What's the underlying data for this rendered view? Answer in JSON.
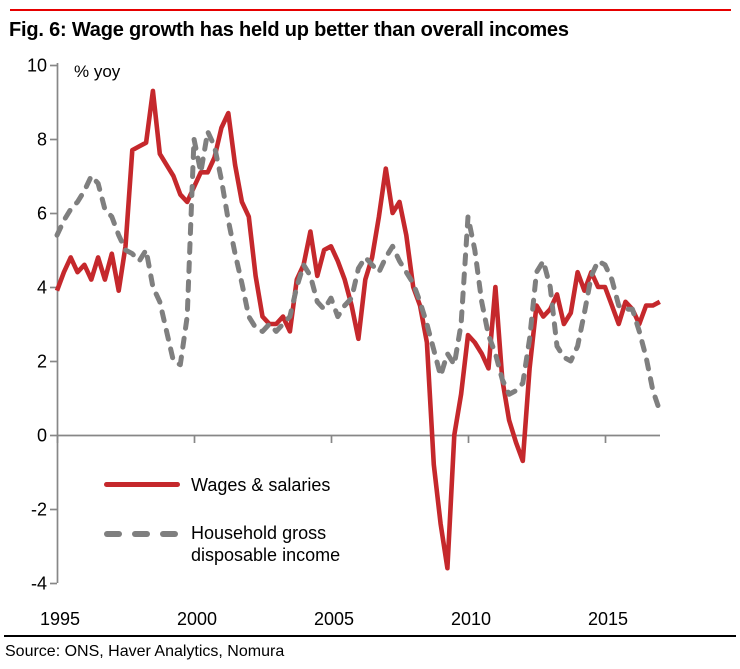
{
  "figure": {
    "title": "Fig. 6: Wage growth has held up better than overall incomes",
    "unit_label": "% yoy",
    "source": "Source: ONS, Haver Analytics, Nomura"
  },
  "colors": {
    "top_rule_red": "#e60000",
    "series_red": "#c5282c",
    "series_gray": "#7f7f7f",
    "axis_gray": "#878787",
    "bottom_rule_black": "#000000",
    "text_black": "#000000"
  },
  "chart_data": {
    "type": "line",
    "title": "Fig. 6: Wage growth has held up better than overall incomes",
    "ylabel": "% yoy",
    "xlabel": "",
    "x_start": 1995.0,
    "x_step": 0.25,
    "xlim": [
      1995,
      2017.25
    ],
    "ylim": [
      -4,
      10
    ],
    "y_ticks": [
      10,
      8,
      6,
      4,
      2,
      0,
      -2,
      -4
    ],
    "x_ticks": [
      1995,
      2000,
      2005,
      2010,
      2015
    ],
    "grid": "zero-line-only",
    "legend_position": "inside-bottom-left",
    "series": [
      {
        "name": "Wages & salaries",
        "style": "solid",
        "color": "#c5282c",
        "values": [
          3.9,
          4.4,
          4.8,
          4.4,
          4.6,
          4.2,
          4.8,
          4.2,
          4.9,
          3.9,
          5.1,
          7.7,
          7.8,
          7.9,
          9.3,
          7.6,
          7.3,
          7.0,
          6.5,
          6.3,
          6.7,
          7.1,
          7.1,
          7.5,
          8.3,
          8.7,
          7.3,
          6.3,
          5.9,
          4.3,
          3.2,
          3.0,
          3.0,
          3.2,
          2.8,
          4.2,
          4.6,
          5.5,
          4.3,
          5.0,
          5.1,
          4.7,
          4.2,
          3.5,
          2.6,
          4.2,
          4.8,
          5.9,
          7.2,
          6.0,
          6.3,
          5.4,
          4.0,
          3.5,
          2.5,
          -0.8,
          -2.4,
          -3.6,
          0.0,
          1.1,
          2.7,
          2.5,
          2.2,
          1.8,
          4.0,
          1.5,
          0.4,
          -0.2,
          -0.7,
          1.8,
          3.5,
          3.2,
          3.4,
          3.8,
          3.0,
          3.3,
          4.4,
          3.9,
          4.4,
          4.0,
          4.0,
          3.5,
          3.0,
          3.6,
          3.4,
          3.0,
          3.5,
          3.5,
          3.6
        ]
      },
      {
        "name": "Household gross disposable income",
        "style": "dashed",
        "color": "#7f7f7f",
        "values": [
          5.4,
          5.8,
          6.1,
          6.3,
          6.6,
          7.0,
          6.8,
          6.1,
          5.9,
          5.4,
          5.0,
          4.9,
          4.7,
          5.0,
          4.0,
          3.6,
          2.8,
          2.0,
          1.9,
          3.2,
          8.0,
          7.1,
          8.2,
          7.8,
          6.9,
          5.8,
          4.9,
          4.1,
          3.2,
          2.9,
          2.8,
          3.0,
          2.8,
          3.0,
          3.2,
          4.0,
          4.6,
          4.3,
          3.6,
          3.4,
          3.7,
          3.2,
          3.5,
          3.7,
          4.5,
          4.8,
          4.6,
          4.4,
          4.8,
          5.1,
          4.7,
          4.4,
          4.1,
          3.6,
          3.0,
          2.3,
          1.6,
          2.2,
          1.9,
          3.0,
          5.9,
          5.0,
          3.6,
          2.7,
          2.2,
          1.5,
          1.1,
          1.2,
          1.4,
          2.6,
          4.4,
          4.7,
          4.0,
          2.4,
          2.1,
          2.0,
          2.4,
          3.3,
          4.3,
          4.7,
          4.6,
          4.2,
          3.5,
          3.4,
          3.4,
          2.8,
          2.1,
          1.2,
          0.65
        ]
      }
    ]
  }
}
